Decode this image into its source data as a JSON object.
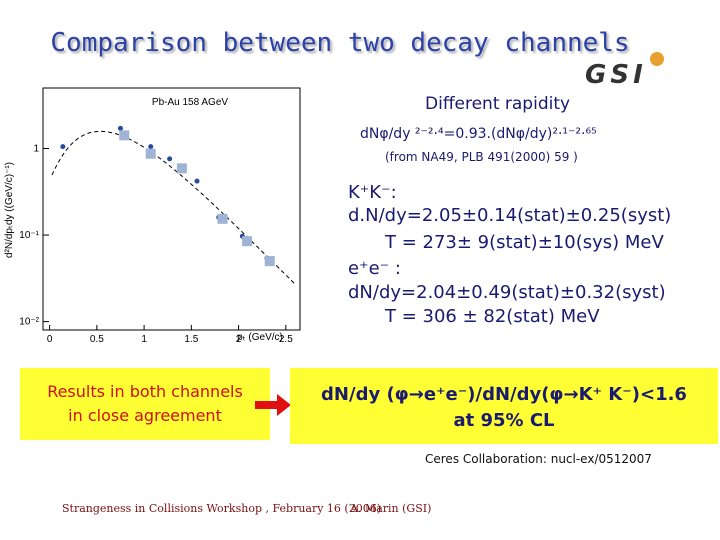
{
  "header": {
    "title": "Comparison between two decay channels",
    "logo": "GSI"
  },
  "plot": {
    "type": "scatter",
    "annotation": "Pb-Au 158 AGeV",
    "x_label": "pₜ (GeV/c)",
    "y_label": "d²N/dpₜdy ((GeV/c)⁻¹)",
    "xlim": [
      -0.07,
      2.65
    ],
    "xticks": [
      0,
      0.5,
      1,
      1.5,
      2,
      2.5
    ],
    "ylim": [
      0.008,
      5
    ],
    "yticks": [
      1,
      {
        "value": 0.1,
        "label": "10⁻¹"
      },
      {
        "value": 0.01,
        "label": "10⁻²"
      }
    ],
    "log_y": true,
    "series": [
      {
        "marker": "circle",
        "color": "#2a4a9a",
        "x": [
          0.14,
          0.75,
          1.07,
          1.27,
          1.56,
          1.79,
          2.04,
          2.3
        ],
        "values": [
          1.05,
          1.71,
          1.05,
          0.76,
          0.42,
          0.16,
          0.097,
          0.054
        ]
      },
      {
        "marker": "square",
        "color": "#9fb3d4",
        "x": [
          0.79,
          1.07,
          1.4,
          1.83,
          2.09,
          2.33
        ],
        "values": [
          1.42,
          0.87,
          0.59,
          0.154,
          0.085,
          0.05
        ]
      }
    ]
  },
  "results": {
    "heading": "Different rapidity",
    "relation": "dNφ/dy ²⁻²·⁴=0.93.(dNφ/dy)²·¹⁻²·⁶⁵",
    "reference": "(from NA49, PLB 491(2000) 59 )",
    "lines": [
      "K⁺K⁻:",
      "d.N/dy=2.05±0.14(stat)±0.25(syst)",
      "T = 273± 9(stat)±10(sys) MeV",
      "e⁺e⁻ :",
      "dN/dy=2.04±0.49(stat)±0.32(syst)",
      "T = 306 ± 82(stat) MeV"
    ]
  },
  "conclusion": {
    "left": [
      "Results in both channels",
      "in close agreement"
    ],
    "right": [
      "dN/dy (φ→e⁺e⁻)/dN/dy(φ→K⁺ K⁻)<1.6",
      "at 95% CL"
    ]
  },
  "credit": "Ceres Collaboration: nucl-ex/0512007",
  "footer": {
    "event": "Strangeness in Collisions Workshop , February 16 (2006)",
    "author": "A. Marin (GSI)"
  }
}
